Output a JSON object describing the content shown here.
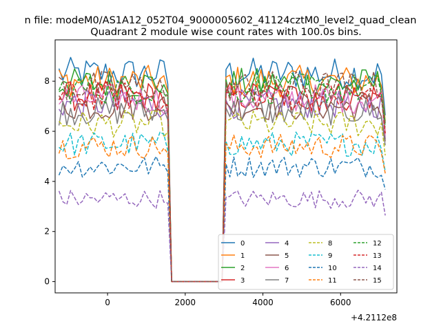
{
  "figure": {
    "suptitle": "n file: modeM0/AS1A12_052T04_9000005602_41124cztM0_level2_quad_clean",
    "title": "Quadrant 2 module wise count rates with 100.0s bins."
  },
  "chart_data": {
    "type": "line",
    "title": "Quadrant 2 module wise count rates with 100.0s bins.",
    "xlabel": "",
    "ylabel": "",
    "x_offset_label": "+4.2112e8",
    "xlim": [
      -1350,
      7450
    ],
    "ylim": [
      -0.45,
      9.65
    ],
    "xticks": [
      0,
      2000,
      4000,
      6000
    ],
    "yticks": [
      0,
      2,
      4,
      6,
      8
    ],
    "grid": false,
    "legend": {
      "placement": "lower-right",
      "ncol": 4
    },
    "segments": {
      "on1": [
        -1250,
        1550
      ],
      "gap": [
        1650,
        2950
      ],
      "on2": [
        3050,
        7150
      ],
      "step": 100
    },
    "series": [
      {
        "name": "0",
        "color": "#1f77b4",
        "dash": "solid",
        "level": 8.3
      },
      {
        "name": "1",
        "color": "#ff7f0e",
        "dash": "solid",
        "level": 8.0
      },
      {
        "name": "2",
        "color": "#2ca02c",
        "dash": "solid",
        "level": 7.9
      },
      {
        "name": "3",
        "color": "#d62728",
        "dash": "solid",
        "level": 7.4
      },
      {
        "name": "4",
        "color": "#9467bd",
        "dash": "solid",
        "level": 7.1
      },
      {
        "name": "5",
        "color": "#8c564b",
        "dash": "solid",
        "level": 7.0
      },
      {
        "name": "6",
        "color": "#e377c2",
        "dash": "solid",
        "level": 7.3
      },
      {
        "name": "7",
        "color": "#7f7f7f",
        "dash": "solid",
        "level": 6.8
      },
      {
        "name": "8",
        "color": "#bcbd22",
        "dash": "dashed",
        "level": 6.3
      },
      {
        "name": "9",
        "color": "#17becf",
        "dash": "dashed",
        "level": 5.5
      },
      {
        "name": "10",
        "color": "#1f77b4",
        "dash": "dashed",
        "level": 4.6
      },
      {
        "name": "11",
        "color": "#ff7f0e",
        "dash": "dashed",
        "level": 5.4
      },
      {
        "name": "12",
        "color": "#2ca02c",
        "dash": "dashed",
        "level": 7.7
      },
      {
        "name": "13",
        "color": "#d62728",
        "dash": "dashed",
        "level": 7.4
      },
      {
        "name": "14",
        "color": "#9467bd",
        "dash": "dashed",
        "level": 3.3
      },
      {
        "name": "15",
        "color": "#8c564b",
        "dash": "dashed",
        "level": 7.8
      }
    ]
  }
}
